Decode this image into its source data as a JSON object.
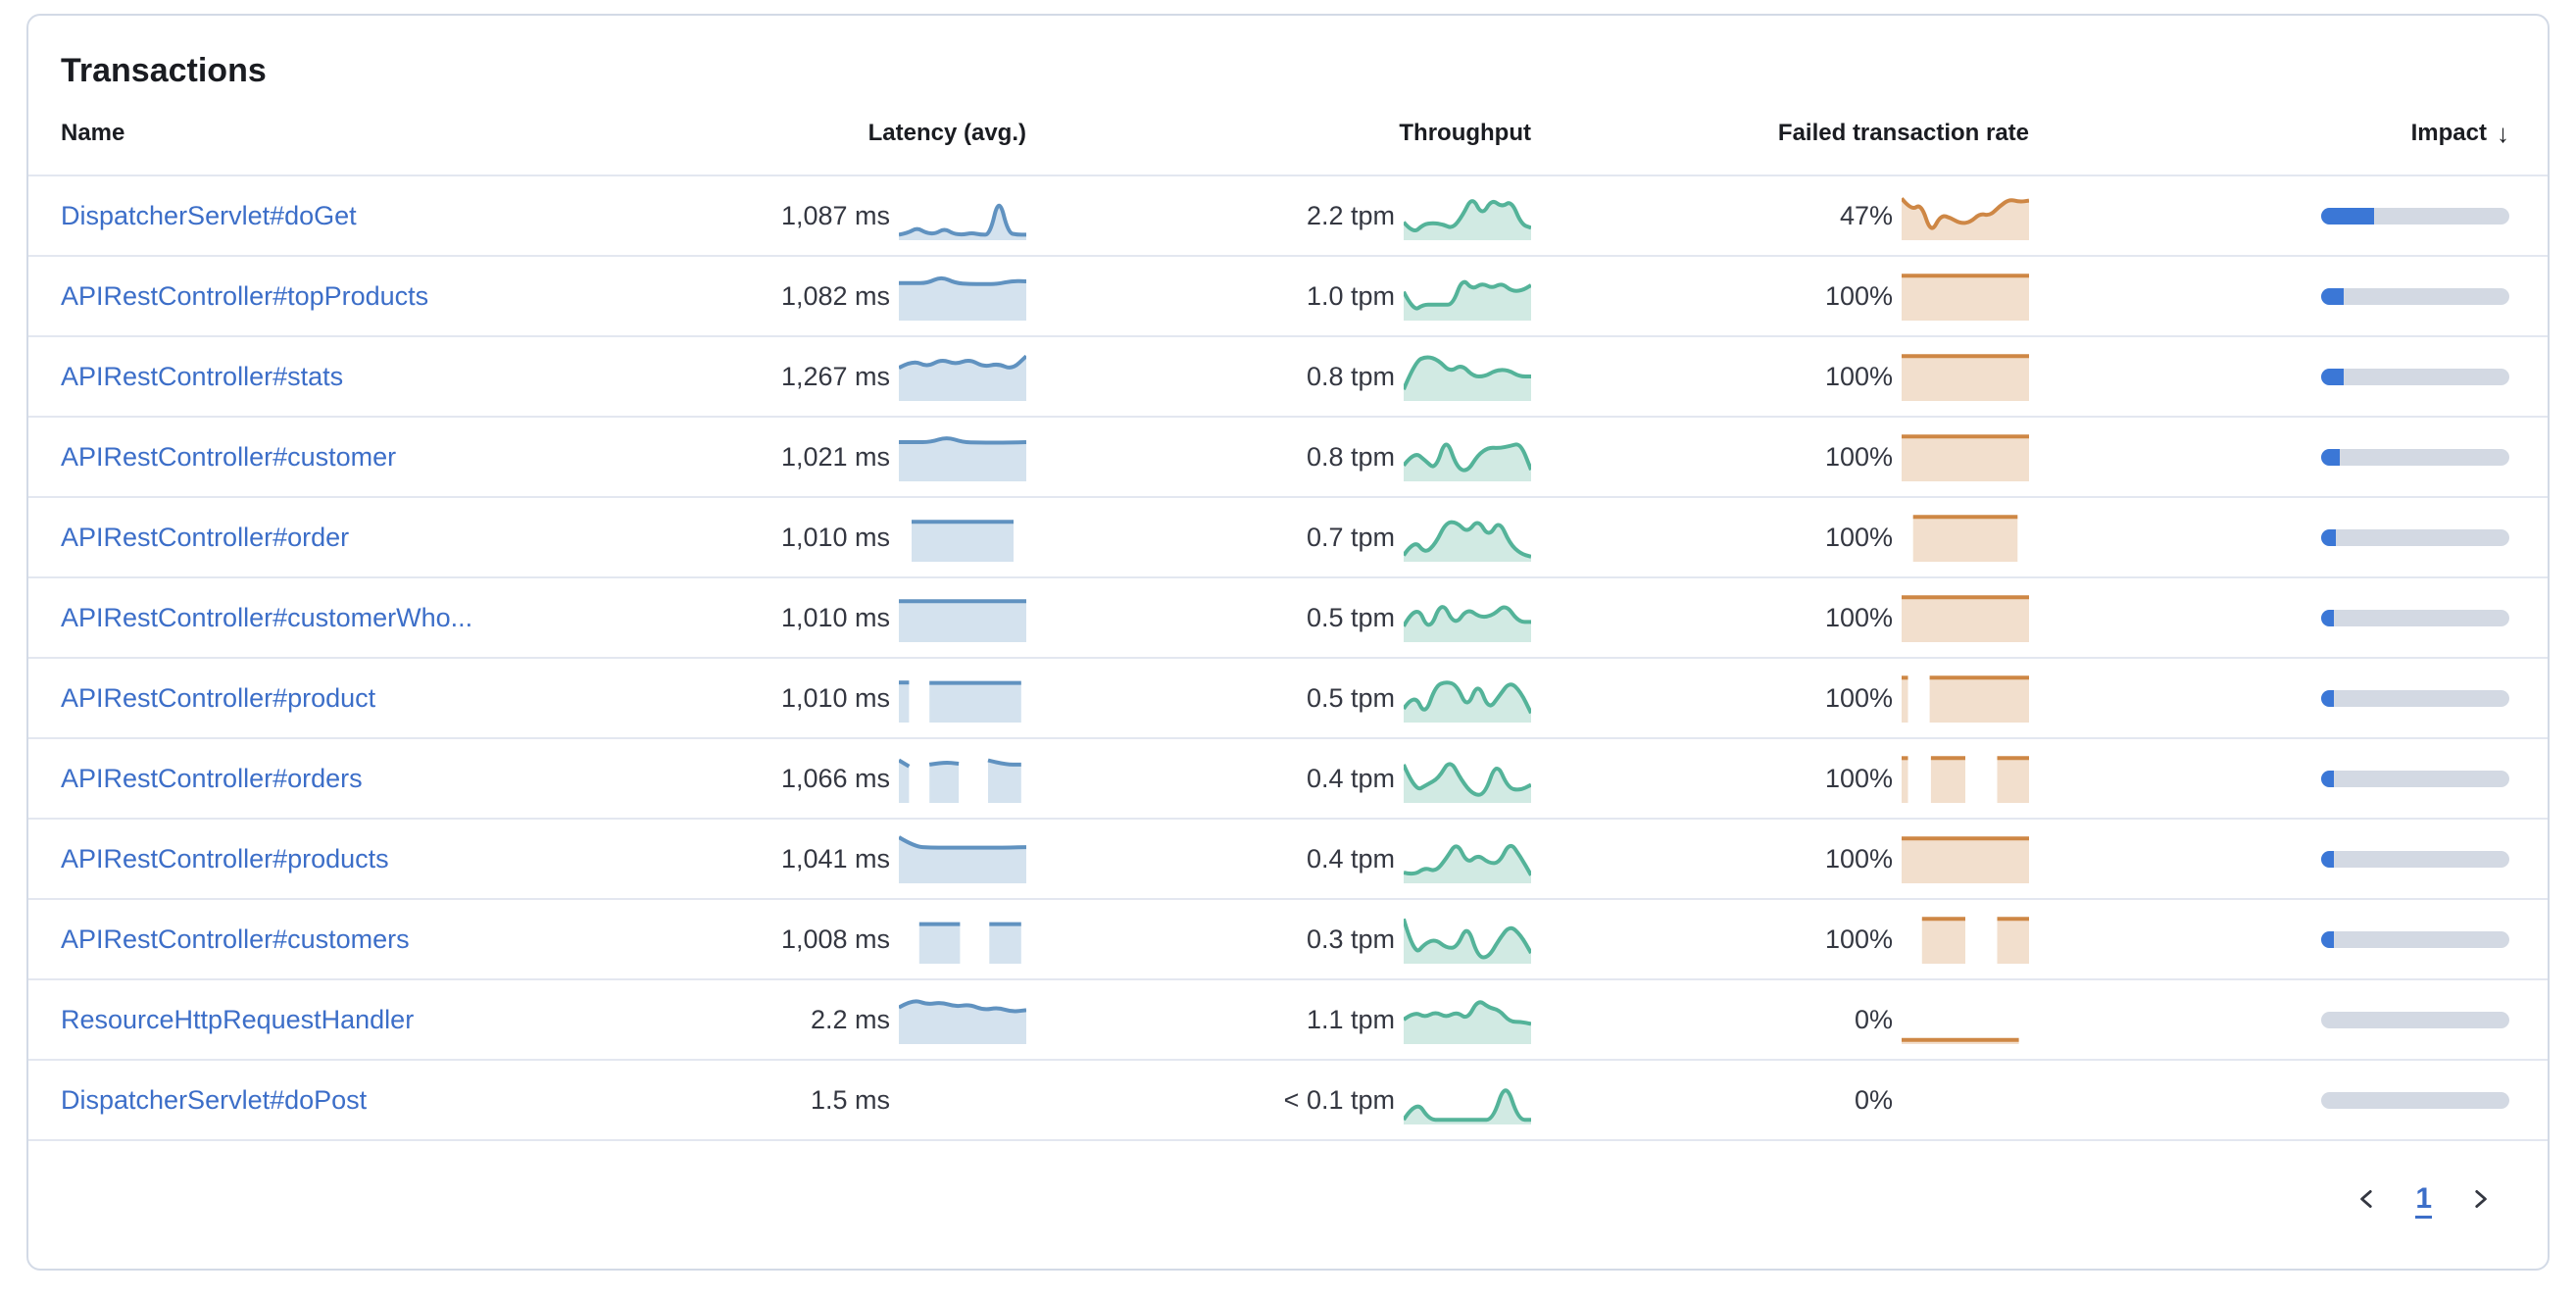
{
  "card": {
    "title": "Transactions"
  },
  "table": {
    "columns": {
      "name": "Name",
      "latency": "Latency (avg.)",
      "throughput": "Throughput",
      "failed": "Failed transaction rate",
      "impact": "Impact"
    },
    "sort": {
      "column": "impact",
      "direction": "desc",
      "indicator": "↓"
    },
    "rows": [
      {
        "name": "DispatcherServlet#doGet",
        "latency": "1,087 ms",
        "throughput": "2.2 tpm",
        "failed_rate": "47%",
        "impact_pct": 28,
        "latency_spark": {
          "segments": [
            {
              "x": [
                0,
                1
              ],
              "pts": [
                0.06,
                0.1,
                0.22,
                0.1,
                0.08,
                0.2,
                0.08,
                0.06,
                0.1,
                0.06,
                0.06,
                0.95,
                0.1,
                0.06,
                0.06
              ]
            }
          ]
        },
        "throughput_spark": {
          "segments": [
            {
              "x": [
                0,
                1
              ],
              "pts": [
                0.35,
                0.08,
                0.3,
                0.33,
                0.3,
                0.2,
                0.5,
                0.95,
                0.5,
                0.88,
                0.7,
                0.85,
                0.3,
                0.22
              ]
            }
          ]
        },
        "failed_spark": {
          "segments": [
            {
              "x": [
                0,
                1
              ],
              "pts": [
                0.9,
                0.62,
                0.78,
                0.08,
                0.52,
                0.45,
                0.32,
                0.35,
                0.55,
                0.5,
                0.72,
                0.88,
                0.82,
                0.85
              ]
            }
          ]
        }
      },
      {
        "name": "APIRestController#topProducts",
        "latency": "1,082 ms",
        "throughput": "1.0 tpm",
        "failed_rate": "100%",
        "impact_pct": 12,
        "latency_spark": {
          "segments": [
            {
              "x": [
                0,
                1
              ],
              "pts": [
                0.8,
                0.8,
                0.8,
                0.95,
                0.8,
                0.78,
                0.78,
                0.78,
                0.85,
                0.84
              ]
            }
          ]
        },
        "throughput_spark": {
          "segments": [
            {
              "x": [
                0,
                1
              ],
              "pts": [
                0.6,
                0.15,
                0.3,
                0.3,
                0.3,
                0.3,
                0.92,
                0.65,
                0.8,
                0.68,
                0.8,
                0.62,
                0.62,
                0.75
              ]
            }
          ]
        },
        "failed_spark": {
          "segments": [
            {
              "x": [
                0,
                1
              ],
              "pts": [
                0.97,
                0.97
              ]
            }
          ]
        }
      },
      {
        "name": "APIRestController#stats",
        "latency": "1,267 ms",
        "throughput": "0.8 tpm",
        "failed_rate": "100%",
        "impact_pct": 12,
        "latency_spark": {
          "segments": [
            {
              "x": [
                0,
                1
              ],
              "pts": [
                0.7,
                0.88,
                0.72,
                0.9,
                0.78,
                0.9,
                0.72,
                0.8,
                0.66,
                0.97
              ]
            }
          ]
        },
        "throughput_spark": {
          "segments": [
            {
              "x": [
                0,
                1
              ],
              "pts": [
                0.2,
                0.85,
                0.97,
                0.88,
                0.6,
                0.78,
                0.5,
                0.5,
                0.65,
                0.65,
                0.5,
                0.5
              ]
            }
          ]
        },
        "failed_spark": {
          "segments": [
            {
              "x": [
                0,
                1
              ],
              "pts": [
                0.97,
                0.97
              ]
            }
          ]
        }
      },
      {
        "name": "APIRestController#customer",
        "latency": "1,021 ms",
        "throughput": "0.8 tpm",
        "failed_rate": "100%",
        "impact_pct": 10,
        "latency_spark": {
          "segments": [
            {
              "x": [
                0,
                1
              ],
              "pts": [
                0.84,
                0.84,
                0.84,
                0.96,
                0.84,
                0.83,
                0.83,
                0.83,
                0.84
              ]
            }
          ]
        },
        "throughput_spark": {
          "segments": [
            {
              "x": [
                0,
                1
              ],
              "pts": [
                0.3,
                0.62,
                0.42,
                0.2,
                0.97,
                0.25,
                0.15,
                0.55,
                0.72,
                0.7,
                0.75,
                0.82,
                0.2
              ]
            }
          ]
        },
        "failed_spark": {
          "segments": [
            {
              "x": [
                0,
                1
              ],
              "pts": [
                0.97,
                0.97
              ]
            }
          ]
        }
      },
      {
        "name": "APIRestController#order",
        "latency": "1,010 ms",
        "throughput": "0.7 tpm",
        "failed_rate": "100%",
        "impact_pct": 8,
        "latency_spark": {
          "segments": [
            {
              "x": [
                0.1,
                0.9
              ],
              "pts": [
                0.86,
                0.86
              ]
            }
          ]
        },
        "throughput_spark": {
          "segments": [
            {
              "x": [
                0,
                1
              ],
              "pts": [
                0.08,
                0.45,
                0.12,
                0.35,
                0.85,
                0.85,
                0.6,
                0.92,
                0.5,
                0.9,
                0.35,
                0.12,
                0.05
              ]
            }
          ]
        },
        "failed_spark": {
          "segments": [
            {
              "x": [
                0.09,
                0.91
              ],
              "pts": [
                0.97,
                0.97
              ]
            }
          ]
        }
      },
      {
        "name": "APIRestController#customerWho...",
        "latency": "1,010 ms",
        "throughput": "0.5 tpm",
        "failed_rate": "100%",
        "impact_pct": 7,
        "latency_spark": {
          "segments": [
            {
              "x": [
                0,
                1
              ],
              "pts": [
                0.88,
                0.88
              ]
            }
          ]
        },
        "throughput_spark": {
          "segments": [
            {
              "x": [
                0,
                1
              ],
              "pts": [
                0.3,
                0.85,
                0.15,
                0.92,
                0.3,
                0.72,
                0.5,
                0.55,
                0.82,
                0.4,
                0.4
              ]
            }
          ]
        },
        "failed_spark": {
          "segments": [
            {
              "x": [
                0,
                1
              ],
              "pts": [
                0.97,
                0.97
              ]
            }
          ]
        }
      },
      {
        "name": "APIRestController#product",
        "latency": "1,010 ms",
        "throughput": "0.5 tpm",
        "failed_rate": "100%",
        "impact_pct": 6,
        "latency_spark": {
          "segments": [
            {
              "x": [
                0,
                0.08
              ],
              "pts": [
                0.86,
                0.86
              ]
            },
            {
              "x": [
                0.24,
                0.96
              ],
              "pts": [
                0.85,
                0.85
              ]
            }
          ]
        },
        "throughput_spark": {
          "segments": [
            {
              "x": [
                0,
                1
              ],
              "pts": [
                0.25,
                0.62,
                0.08,
                0.78,
                0.88,
                0.8,
                0.25,
                0.88,
                0.22,
                0.55,
                0.88,
                0.65,
                0.15
              ]
            }
          ]
        },
        "failed_spark": {
          "segments": [
            {
              "x": [
                0,
                0.05
              ],
              "pts": [
                0.97,
                0.97
              ]
            },
            {
              "x": [
                0.22,
                1
              ],
              "pts": [
                0.97,
                0.97
              ]
            }
          ]
        }
      },
      {
        "name": "APIRestController#orders",
        "latency": "1,066 ms",
        "throughput": "0.4 tpm",
        "failed_rate": "100%",
        "impact_pct": 5.5,
        "latency_spark": {
          "segments": [
            {
              "x": [
                0,
                0.08
              ],
              "pts": [
                0.92,
                0.78
              ]
            },
            {
              "x": [
                0.24,
                0.47
              ],
              "pts": [
                0.82,
                0.88,
                0.84
              ]
            },
            {
              "x": [
                0.7,
                0.96
              ],
              "pts": [
                0.92,
                0.82,
                0.82
              ]
            }
          ]
        },
        "throughput_spark": {
          "segments": [
            {
              "x": [
                0,
                1
              ],
              "pts": [
                0.82,
                0.2,
                0.35,
                0.5,
                0.95,
                0.45,
                0.12,
                0.12,
                0.9,
                0.28,
                0.22,
                0.35
              ]
            }
          ]
        },
        "failed_spark": {
          "segments": [
            {
              "x": [
                0,
                0.05
              ],
              "pts": [
                0.97,
                0.97
              ]
            },
            {
              "x": [
                0.23,
                0.5
              ],
              "pts": [
                0.97,
                0.97
              ]
            },
            {
              "x": [
                0.75,
                1
              ],
              "pts": [
                0.97,
                0.97
              ]
            }
          ]
        }
      },
      {
        "name": "APIRestController#products",
        "latency": "1,041 ms",
        "throughput": "0.4 tpm",
        "failed_rate": "100%",
        "impact_pct": 5,
        "latency_spark": {
          "segments": [
            {
              "x": [
                0,
                1
              ],
              "pts": [
                1.0,
                0.78,
                0.76,
                0.76,
                0.76,
                0.76,
                0.76,
                0.76,
                0.77
              ]
            }
          ]
        },
        "throughput_spark": {
          "segments": [
            {
              "x": [
                0,
                1
              ],
              "pts": [
                0.18,
                0.12,
                0.3,
                0.2,
                0.5,
                0.9,
                0.38,
                0.6,
                0.4,
                0.4,
                0.9,
                0.55,
                0.12
              ]
            }
          ]
        },
        "failed_spark": {
          "segments": [
            {
              "x": [
                0,
                1
              ],
              "pts": [
                0.97,
                0.97
              ]
            }
          ]
        }
      },
      {
        "name": "APIRestController#customers",
        "latency": "1,008 ms",
        "throughput": "0.3 tpm",
        "failed_rate": "100%",
        "impact_pct": 4.5,
        "latency_spark": {
          "segments": [
            {
              "x": [
                0.16,
                0.48
              ],
              "pts": [
                0.85,
                0.85
              ]
            },
            {
              "x": [
                0.71,
                0.96
              ],
              "pts": [
                0.85,
                0.85
              ]
            }
          ]
        },
        "throughput_spark": {
          "segments": [
            {
              "x": [
                0,
                1
              ],
              "pts": [
                0.97,
                0.12,
                0.4,
                0.5,
                0.3,
                0.3,
                0.85,
                0.08,
                0.08,
                0.5,
                0.82,
                0.6,
                0.18
              ]
            }
          ]
        },
        "failed_spark": {
          "segments": [
            {
              "x": [
                0.16,
                0.5
              ],
              "pts": [
                0.97,
                0.97
              ]
            },
            {
              "x": [
                0.75,
                1
              ],
              "pts": [
                0.97,
                0.97
              ]
            }
          ]
        }
      },
      {
        "name": "ResourceHttpRequestHandler",
        "latency": "2.2 ms",
        "throughput": "1.1 tpm",
        "failed_rate": "0%",
        "impact_pct": 0,
        "latency_spark": {
          "segments": [
            {
              "x": [
                0,
                1
              ],
              "pts": [
                0.78,
                0.97,
                0.85,
                0.9,
                0.8,
                0.85,
                0.72,
                0.78,
                0.68,
                0.72
              ]
            }
          ]
        },
        "throughput_spark": {
          "segments": [
            {
              "x": [
                0,
                1
              ],
              "pts": [
                0.5,
                0.68,
                0.55,
                0.68,
                0.55,
                0.68,
                0.5,
                0.97,
                0.78,
                0.72,
                0.45,
                0.45,
                0.4
              ]
            }
          ]
        },
        "failed_spark": {
          "segments": [
            {
              "x": [
                0,
                0.92
              ],
              "pts": [
                0.03,
                0.03
              ]
            }
          ]
        }
      },
      {
        "name": "DispatcherServlet#doPost",
        "latency": "1.5 ms",
        "throughput": "< 0.1 tpm",
        "failed_rate": "0%",
        "impact_pct": 0,
        "latency_spark": null,
        "throughput_spark": {
          "segments": [
            {
              "x": [
                0,
                1
              ],
              "pts": [
                0.04,
                0.5,
                0.04,
                0.04,
                0.04,
                0.04,
                0.04,
                0.04,
                0.95,
                0.04,
                0.04
              ]
            }
          ]
        },
        "failed_spark": null
      }
    ]
  },
  "pagination": {
    "current_page": "1"
  },
  "colors": {
    "link": "#3C6EC8",
    "latency_line": "#6092C0",
    "latency_fill": "rgba(96,146,192,0.27)",
    "throughput_line": "#54B399",
    "throughput_fill": "rgba(84,179,153,0.27)",
    "failed_line": "#CE8745",
    "failed_fill": "rgba(206,135,69,0.27)",
    "impact_fill": "#3B77D6",
    "impact_track": "#D3D9E3"
  }
}
